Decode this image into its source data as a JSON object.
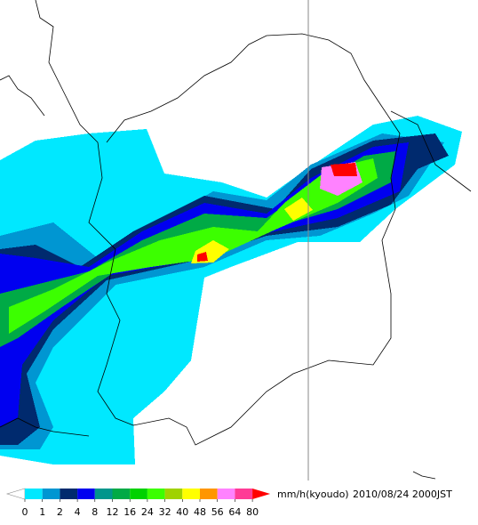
{
  "legend": {
    "ticks": [
      0,
      1,
      2,
      4,
      8,
      12,
      16,
      24,
      32,
      40,
      48,
      56,
      64,
      80
    ],
    "colors": [
      "#ffffff",
      "#00e8ff",
      "#0096d2",
      "#002a6e",
      "#0000f0",
      "#00968c",
      "#00aa46",
      "#00d200",
      "#3cff00",
      "#a0d200",
      "#ffff00",
      "#ff9600",
      "#ff82ff",
      "#ff3c96",
      "#ff0000"
    ],
    "unit": "mm/h(kyoudo)",
    "timestamp": "2010/08/24 2000JST"
  }
}
